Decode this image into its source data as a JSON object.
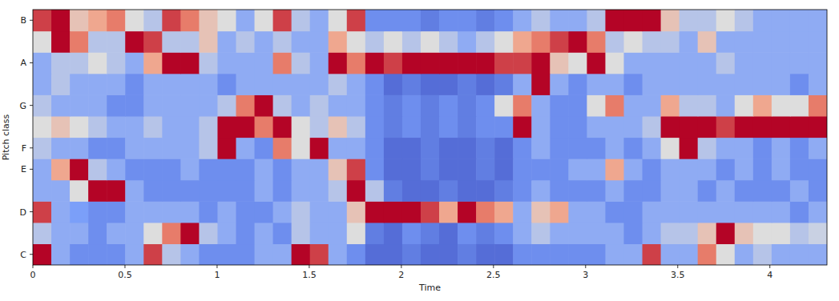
{
  "chart_data": {
    "type": "heatmap",
    "x_label": "Time",
    "y_label": "Pitch class",
    "xlim": [
      0,
      4.31
    ],
    "xticks": [
      0,
      0.5,
      1,
      1.5,
      2,
      2.5,
      3,
      3.5,
      4
    ],
    "ylim": [
      -0.5,
      11.5
    ],
    "yticks": [
      {
        "value": 0,
        "label": "C"
      },
      {
        "value": 2,
        "label": "D"
      },
      {
        "value": 4,
        "label": "E"
      },
      {
        "value": 5,
        "label": "F"
      },
      {
        "value": 7,
        "label": "G"
      },
      {
        "value": 9,
        "label": "A"
      },
      {
        "value": 11,
        "label": "B"
      }
    ],
    "zlim": [
      0,
      1
    ],
    "cells": [
      [
        1,
        0.3,
        0.2,
        0.2,
        0.2,
        0.3,
        0.9,
        0.4,
        0.3,
        0.2,
        0.2,
        0.2,
        0.3,
        0.3,
        1,
        0.9,
        0.3,
        0.2,
        0.1,
        0.1,
        0.15,
        0.1,
        0.1,
        0.15,
        0.1,
        0.1,
        0.2,
        0.2,
        0.2,
        0.2,
        0.2,
        0.3,
        0.3,
        0.9,
        0.3,
        0.3,
        0.8,
        0.5,
        0.3,
        0.4,
        0.3,
        0.3,
        0.3
      ],
      [
        0.4,
        0.3,
        0.3,
        0.2,
        0.3,
        0.3,
        0.5,
        0.8,
        1,
        0.4,
        0.3,
        0.2,
        0.3,
        0.2,
        0.4,
        0.3,
        0.3,
        0.5,
        0.15,
        0.1,
        0.2,
        0.15,
        0.1,
        0.2,
        0.15,
        0.2,
        0.3,
        0.4,
        0.3,
        0.3,
        0.3,
        0.3,
        0.2,
        0.3,
        0.4,
        0.4,
        0.6,
        1,
        0.6,
        0.5,
        0.5,
        0.4,
        0.45
      ],
      [
        0.9,
        0.3,
        0.25,
        0.2,
        0.2,
        0.3,
        0.3,
        0.3,
        0.3,
        0.2,
        0.3,
        0.2,
        0.2,
        0.3,
        0.4,
        0.3,
        0.3,
        0.6,
        1,
        1,
        1,
        0.9,
        0.7,
        1,
        0.8,
        0.7,
        0.3,
        0.6,
        0.7,
        0.3,
        0.3,
        0.2,
        0.2,
        0.3,
        0.3,
        0.3,
        0.3,
        0.3,
        0.3,
        0.3,
        0.3,
        0.2,
        0.3
      ],
      [
        0.3,
        0.3,
        0.5,
        1,
        1,
        0.3,
        0.2,
        0.2,
        0.2,
        0.2,
        0.2,
        0.2,
        0.3,
        0.2,
        0.3,
        0.3,
        0.4,
        1,
        0.4,
        0.15,
        0.1,
        0.1,
        0.15,
        0.1,
        0.1,
        0.15,
        0.2,
        0.3,
        0.2,
        0.2,
        0.2,
        0.3,
        0.2,
        0.2,
        0.3,
        0.3,
        0.2,
        0.3,
        0.2,
        0.2,
        0.2,
        0.3,
        0.2
      ],
      [
        0.3,
        0.7,
        1,
        0.4,
        0.3,
        0.2,
        0.2,
        0.2,
        0.3,
        0.2,
        0.2,
        0.2,
        0.3,
        0.2,
        0.3,
        0.3,
        0.6,
        0.9,
        0.2,
        0.1,
        0.1,
        0.15,
        0.1,
        0.1,
        0.15,
        0.1,
        0.2,
        0.2,
        0.2,
        0.3,
        0.3,
        0.7,
        0.3,
        0.2,
        0.3,
        0.3,
        0.3,
        0.2,
        0.3,
        0.2,
        0.3,
        0.2,
        0.2
      ],
      [
        0.4,
        0.3,
        0.3,
        0.2,
        0.2,
        0.3,
        0.3,
        0.3,
        0.3,
        0.4,
        1,
        0.3,
        0.2,
        0.8,
        0.5,
        1,
        0.3,
        0.3,
        0.2,
        0.1,
        0.1,
        0.15,
        0.1,
        0.1,
        0.15,
        0.1,
        0.2,
        0.3,
        0.2,
        0.2,
        0.2,
        0.3,
        0.2,
        0.3,
        0.5,
        1,
        0.4,
        0.3,
        0.3,
        0.2,
        0.3,
        0.2,
        0.3
      ],
      [
        0.5,
        0.6,
        0.5,
        0.4,
        0.3,
        0.3,
        0.4,
        0.3,
        0.3,
        0.4,
        1,
        1,
        0.8,
        1,
        0.5,
        0.4,
        0.6,
        0.4,
        0.2,
        0.15,
        0.2,
        0.15,
        0.2,
        0.15,
        0.2,
        0.2,
        1,
        0.3,
        0.2,
        0.2,
        0.3,
        0.3,
        0.3,
        0.4,
        1,
        1,
        1,
        0.9,
        1,
        1,
        1,
        1,
        1
      ],
      [
        0.4,
        0.3,
        0.3,
        0.3,
        0.2,
        0.2,
        0.3,
        0.3,
        0.3,
        0.3,
        0.4,
        0.8,
        1,
        0.4,
        0.3,
        0.4,
        0.3,
        0.3,
        0.2,
        0.15,
        0.2,
        0.15,
        0.2,
        0.15,
        0.2,
        0.5,
        0.8,
        0.3,
        0.2,
        0.2,
        0.5,
        0.8,
        0.3,
        0.3,
        0.7,
        0.4,
        0.4,
        0.3,
        0.5,
        0.7,
        0.5,
        0.5,
        0.8
      ],
      [
        0.3,
        0.4,
        0.3,
        0.3,
        0.3,
        0.2,
        0.3,
        0.3,
        0.3,
        0.3,
        0.2,
        0.3,
        0.3,
        0.3,
        0.3,
        0.3,
        0.4,
        0.3,
        0.2,
        0.1,
        0.15,
        0.1,
        0.1,
        0.15,
        0.1,
        0.15,
        0.3,
        1,
        0.3,
        0.2,
        0.3,
        0.3,
        0.2,
        0.3,
        0.3,
        0.3,
        0.3,
        0.3,
        0.3,
        0.3,
        0.3,
        0.2,
        0.3
      ],
      [
        0.3,
        0.4,
        0.4,
        0.5,
        0.4,
        0.3,
        0.7,
        1,
        1,
        0.4,
        0.3,
        0.3,
        0.3,
        0.8,
        0.4,
        0.3,
        1,
        0.8,
        1,
        0.9,
        1,
        1,
        1,
        1,
        1,
        0.9,
        0.9,
        1,
        0.6,
        0.5,
        1,
        0.5,
        0.3,
        0.3,
        0.3,
        0.3,
        0.3,
        0.4,
        0.3,
        0.3,
        0.3,
        0.3,
        0.3
      ],
      [
        0.5,
        1,
        0.8,
        0.4,
        0.4,
        1,
        0.9,
        0.4,
        0.4,
        0.6,
        0.3,
        0.4,
        0.3,
        0.4,
        0.3,
        0.3,
        0.7,
        0.5,
        0.4,
        0.5,
        0.4,
        0.5,
        0.4,
        0.3,
        0.4,
        0.5,
        0.7,
        0.8,
        0.9,
        1,
        0.8,
        0.4,
        0.5,
        0.4,
        0.4,
        0.3,
        0.6,
        0.3,
        0.3,
        0.3,
        0.3,
        0.3,
        0.3
      ],
      [
        0.9,
        1,
        0.6,
        0.7,
        0.8,
        0.5,
        0.4,
        0.9,
        0.8,
        0.6,
        0.5,
        0.3,
        0.5,
        0.9,
        0.4,
        0.3,
        0.5,
        0.9,
        0.2,
        0.2,
        0.2,
        0.15,
        0.2,
        0.2,
        0.15,
        0.2,
        0.3,
        0.4,
        0.3,
        0.3,
        0.4,
        1,
        1,
        1,
        0.6,
        0.4,
        0.4,
        0.5,
        0.4,
        0.3,
        0.3,
        0.3,
        0.3
      ]
    ]
  }
}
